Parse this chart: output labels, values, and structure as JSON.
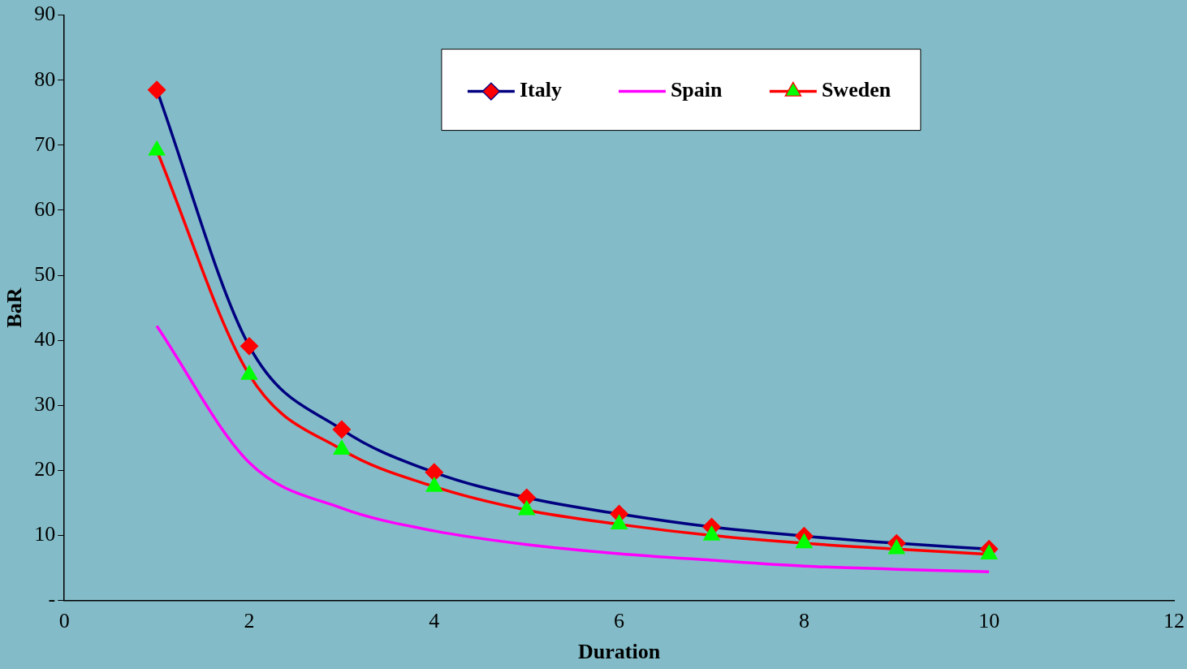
{
  "chart_data": {
    "type": "line",
    "xlabel": "Duration",
    "ylabel": "BaR",
    "x": [
      1,
      2,
      3,
      4,
      5,
      6,
      7,
      8,
      9,
      10
    ],
    "series": [
      {
        "name": "Italy",
        "color": "#000080",
        "marker": "diamond",
        "colors": [
          "#ff0000",
          "#ff0000",
          "#ff0000",
          "#ff0000",
          "#ff0000",
          "#ff0000",
          "#ff0000",
          "#ff0000",
          "#ff0000",
          "#ff0000"
        ],
        "values": [
          78.5,
          39.1,
          26.3,
          19.7,
          15.8,
          13.3,
          11.3,
          9.9,
          8.8,
          7.9
        ]
      },
      {
        "name": "Spain",
        "color": "#ff00ff",
        "marker": "none",
        "values": [
          42.2,
          21.2,
          14.2,
          10.7,
          8.6,
          7.2,
          6.2,
          5.3,
          4.8,
          4.4
        ]
      },
      {
        "name": "Sweden",
        "color": "#ff0000",
        "marker": "triangle",
        "colors": [
          "#00ff00",
          "#00ff00",
          "#00ff00",
          "#00ff00",
          "#00ff00",
          "#00ff00",
          "#00ff00",
          "#00ff00",
          "#00ff00",
          "#00ff00"
        ],
        "values": [
          69.2,
          34.7,
          23.2,
          17.5,
          13.9,
          11.7,
          10.0,
          8.8,
          7.9,
          7.1
        ]
      }
    ],
    "xlim": [
      0,
      12
    ],
    "xticks": [
      0,
      2,
      4,
      6,
      8,
      10,
      12
    ],
    "ylim": [
      0,
      90
    ],
    "yticks": [
      {
        "value": 0,
        "label": "-"
      },
      10,
      20,
      30,
      40,
      50,
      60,
      70,
      80,
      90
    ],
    "grid": false,
    "legend": "top right"
  }
}
